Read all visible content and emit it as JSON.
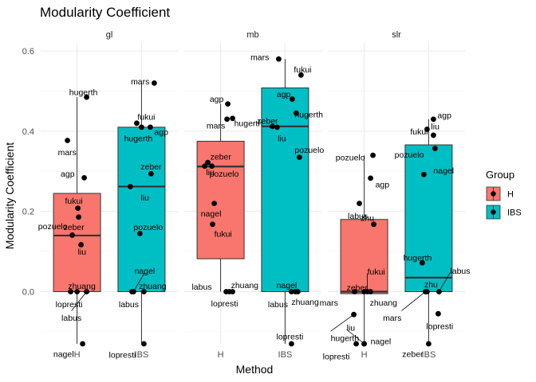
{
  "chart_data": {
    "type": "box",
    "title": "Modularity Coefficient",
    "xlabel": "Method",
    "ylabel": "Modularity Coefficient",
    "ylim": [
      -0.13,
      0.62
    ],
    "yticks": [
      "0.0",
      "0.2",
      "0.4",
      "0.6"
    ],
    "ytick_values": [
      0,
      0.2,
      0.4,
      0.6
    ],
    "categories": [
      "H",
      "IBS"
    ],
    "grid": true,
    "legend": {
      "title": "Group",
      "position": "right",
      "items": [
        {
          "label": "H",
          "color": "#F8766D"
        },
        {
          "label": "IBS",
          "color": "#00BFC4"
        }
      ]
    },
    "facets": [
      {
        "name": "gl",
        "boxes": [
          {
            "group": "H",
            "q1": 0.0,
            "median": 0.14,
            "q3": 0.245,
            "whisker_low": -0.13,
            "whisker_high": 0.485
          },
          {
            "group": "IBS",
            "q1": 0.0,
            "median": 0.262,
            "q3": 0.41,
            "whisker_low": -0.13,
            "whisker_high": 0.52
          }
        ],
        "points": [
          {
            "group": "H",
            "label": "hugerth",
            "value": 0.485
          },
          {
            "group": "H",
            "label": "mars",
            "value": 0.377
          },
          {
            "group": "H",
            "label": "agp",
            "value": 0.284
          },
          {
            "group": "H",
            "label": "fukui",
            "value": 0.208
          },
          {
            "group": "H",
            "label": "pozuelo",
            "value": 0.141
          },
          {
            "group": "H",
            "label": "liu",
            "value": 0.117
          },
          {
            "group": "H",
            "label": "zeber",
            "value": 0.186
          },
          {
            "group": "H",
            "label": "zhuang",
            "value": 0.0
          },
          {
            "group": "H",
            "label": "lopresti",
            "value": 0.0
          },
          {
            "group": "H",
            "label": "labus",
            "value": 0.0
          },
          {
            "group": "H",
            "label": "nagel",
            "value": -0.13
          },
          {
            "group": "IBS",
            "label": "mars",
            "value": 0.52
          },
          {
            "group": "IBS",
            "label": "fukui",
            "value": 0.42
          },
          {
            "group": "IBS",
            "label": "hugerth",
            "value": 0.41
          },
          {
            "group": "IBS",
            "label": "agp",
            "value": 0.41
          },
          {
            "group": "IBS",
            "label": "zeber",
            "value": 0.294
          },
          {
            "group": "IBS",
            "label": "liu",
            "value": 0.262
          },
          {
            "group": "IBS",
            "label": "pozuelo",
            "value": 0.145
          },
          {
            "group": "IBS",
            "label": "nagel",
            "value": 0.0
          },
          {
            "group": "IBS",
            "label": "zhuang",
            "value": 0.0
          },
          {
            "group": "IBS",
            "label": "labus",
            "value": 0.0
          },
          {
            "group": "IBS",
            "label": "lopresti",
            "value": -0.13
          }
        ]
      },
      {
        "name": "mb",
        "boxes": [
          {
            "group": "H",
            "q1": 0.082,
            "median": 0.312,
            "q3": 0.375,
            "whisker_low": 0.0,
            "whisker_high": 0.468
          },
          {
            "group": "IBS",
            "q1": 0.0,
            "median": 0.412,
            "q3": 0.508,
            "whisker_low": -0.13,
            "whisker_high": 0.58
          }
        ],
        "points": [
          {
            "group": "H",
            "label": "agp",
            "value": 0.468
          },
          {
            "group": "H",
            "label": "hugerth",
            "value": 0.432
          },
          {
            "group": "H",
            "label": "mars",
            "value": 0.43
          },
          {
            "group": "H",
            "label": "zeber",
            "value": 0.322
          },
          {
            "group": "H",
            "label": "liu",
            "value": 0.313
          },
          {
            "group": "H",
            "label": "pozuelo",
            "value": 0.313
          },
          {
            "group": "H",
            "label": "nagel",
            "value": 0.22
          },
          {
            "group": "H",
            "label": "fukui",
            "value": 0.168
          },
          {
            "group": "H",
            "label": "labus",
            "value": 0.0
          },
          {
            "group": "H",
            "label": "zhuang",
            "value": 0.0
          },
          {
            "group": "H",
            "label": "lopresti",
            "value": 0.0
          },
          {
            "group": "IBS",
            "label": "mars",
            "value": 0.58
          },
          {
            "group": "IBS",
            "label": "fukui",
            "value": 0.54
          },
          {
            "group": "IBS",
            "label": "agp",
            "value": 0.48
          },
          {
            "group": "IBS",
            "label": "hugerth",
            "value": 0.445
          },
          {
            "group": "IBS",
            "label": "zeber",
            "value": 0.412
          },
          {
            "group": "IBS",
            "label": "liu",
            "value": 0.41
          },
          {
            "group": "IBS",
            "label": "pozuelo",
            "value": 0.335
          },
          {
            "group": "IBS",
            "label": "nagel",
            "value": 0.0
          },
          {
            "group": "IBS",
            "label": "labus",
            "value": 0.0
          },
          {
            "group": "IBS",
            "label": "zhuang",
            "value": 0.0
          },
          {
            "group": "IBS",
            "label": "lopresti",
            "value": -0.13
          }
        ]
      },
      {
        "name": "slr",
        "boxes": [
          {
            "group": "H",
            "q1": -0.005,
            "median": 0.0,
            "q3": 0.18,
            "whisker_low": -0.13,
            "whisker_high": 0.34
          },
          {
            "group": "IBS",
            "q1": 0.0,
            "median": 0.035,
            "q3": 0.366,
            "whisker_low": -0.13,
            "whisker_high": 0.43
          }
        ],
        "points": [
          {
            "group": "H",
            "label": "pozuelo",
            "value": 0.34
          },
          {
            "group": "H",
            "label": "agp",
            "value": 0.283
          },
          {
            "group": "H",
            "label": "labus",
            "value": 0.22
          },
          {
            "group": "H",
            "label": "zhu",
            "value": 0.168
          },
          {
            "group": "H",
            "label": "fukui",
            "value": 0.0
          },
          {
            "group": "H",
            "label": "zeber",
            "value": 0.0
          },
          {
            "group": "H",
            "label": "mars",
            "value": 0.0
          },
          {
            "group": "H",
            "label": "zhuang",
            "value": 0.0
          },
          {
            "group": "H",
            "label": "hugerth",
            "value": -0.057
          },
          {
            "group": "H",
            "label": "liu",
            "value": -0.13
          },
          {
            "group": "H",
            "label": "lopresti",
            "value": -0.13
          },
          {
            "group": "H",
            "label": "nagel",
            "value": -0.13
          },
          {
            "group": "IBS",
            "label": "agp",
            "value": 0.43
          },
          {
            "group": "IBS",
            "label": "fukui",
            "value": 0.405
          },
          {
            "group": "IBS",
            "label": "liu",
            "value": 0.39
          },
          {
            "group": "IBS",
            "label": "pozuelo",
            "value": 0.357
          },
          {
            "group": "IBS",
            "label": "nagel",
            "value": 0.292
          },
          {
            "group": "IBS",
            "label": "hugerth",
            "value": 0.072
          },
          {
            "group": "IBS",
            "label": "labus",
            "value": 0.0
          },
          {
            "group": "IBS",
            "label": "zhu",
            "value": 0.0
          },
          {
            "group": "IBS",
            "label": "mars",
            "value": 0.0
          },
          {
            "group": "IBS",
            "label": "lopresti",
            "value": -0.055
          },
          {
            "group": "IBS",
            "label": "zeber",
            "value": -0.13
          }
        ]
      }
    ]
  }
}
